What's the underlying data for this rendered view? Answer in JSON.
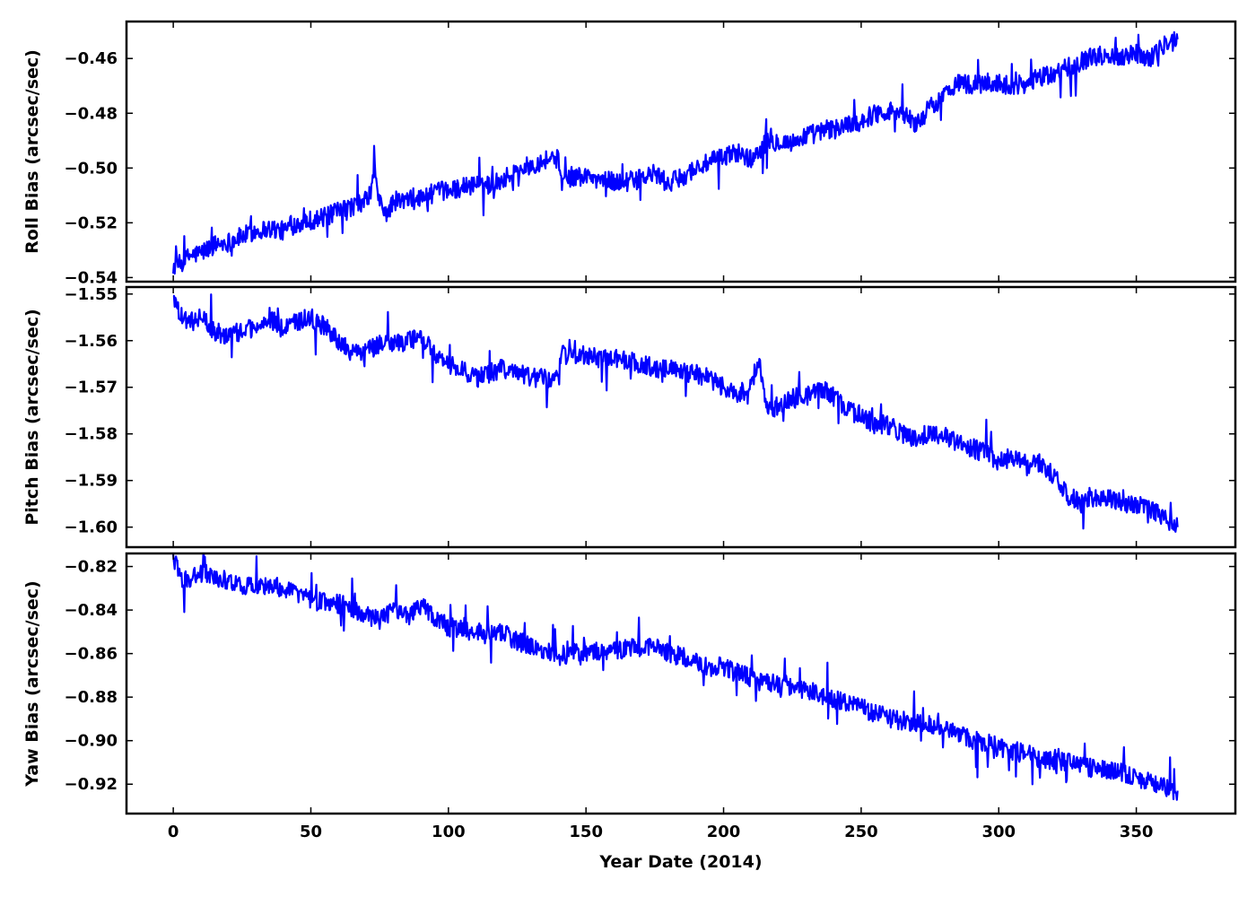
{
  "chart_data": [
    {
      "type": "line",
      "ylabel": "Roll Bias (arcsec/sec)",
      "xlim": [
        -17,
        386
      ],
      "ylim": [
        -0.5415,
        -0.4465
      ],
      "xticks": [
        0,
        50,
        100,
        150,
        200,
        250,
        300,
        350
      ],
      "yticks": [
        -0.54,
        -0.52,
        -0.5,
        -0.48,
        -0.46
      ],
      "ytick_labels": [
        "−0.54",
        "−0.52",
        "−0.50",
        "−0.48",
        "−0.46"
      ],
      "series": [
        {
          "color": "#0000ff",
          "x": [
            0,
            3,
            6,
            10,
            15,
            20,
            25,
            30,
            35,
            40,
            45,
            50,
            55,
            60,
            65,
            70,
            72,
            73,
            75,
            78,
            80,
            85,
            90,
            95,
            100,
            105,
            110,
            115,
            120,
            125,
            130,
            135,
            138,
            140,
            141,
            145,
            150,
            155,
            160,
            165,
            170,
            175,
            180,
            185,
            190,
            195,
            200,
            205,
            210,
            215,
            220,
            225,
            230,
            235,
            240,
            245,
            250,
            255,
            260,
            265,
            270,
            275,
            280,
            285,
            290,
            295,
            300,
            305,
            310,
            315,
            320,
            325,
            330,
            335,
            340,
            345,
            350,
            355,
            360,
            365
          ],
          "values": [
            -0.536,
            -0.535,
            -0.532,
            -0.531,
            -0.528,
            -0.527,
            -0.525,
            -0.523,
            -0.522,
            -0.523,
            -0.52,
            -0.519,
            -0.518,
            -0.516,
            -0.514,
            -0.512,
            -0.508,
            -0.5,
            -0.513,
            -0.517,
            -0.512,
            -0.512,
            -0.511,
            -0.509,
            -0.508,
            -0.507,
            -0.506,
            -0.506,
            -0.504,
            -0.501,
            -0.499,
            -0.497,
            -0.496,
            -0.497,
            -0.505,
            -0.503,
            -0.503,
            -0.504,
            -0.505,
            -0.505,
            -0.504,
            -0.502,
            -0.506,
            -0.503,
            -0.5,
            -0.498,
            -0.496,
            -0.494,
            -0.497,
            -0.491,
            -0.49,
            -0.491,
            -0.488,
            -0.487,
            -0.486,
            -0.484,
            -0.483,
            -0.48,
            -0.479,
            -0.48,
            -0.484,
            -0.478,
            -0.474,
            -0.468,
            -0.47,
            -0.469,
            -0.469,
            -0.47,
            -0.469,
            -0.467,
            -0.466,
            -0.463,
            -0.461,
            -0.459,
            -0.459,
            -0.459,
            -0.458,
            -0.46,
            -0.455,
            -0.453
          ]
        }
      ]
    },
    {
      "type": "line",
      "ylabel": "Pitch Bias (arcsec/sec)",
      "xlim": [
        -17,
        386
      ],
      "ylim": [
        -1.6043,
        -1.5485
      ],
      "xticks": [
        0,
        50,
        100,
        150,
        200,
        250,
        300,
        350
      ],
      "yticks": [
        -1.6,
        -1.59,
        -1.58,
        -1.57,
        -1.56,
        -1.55
      ],
      "ytick_labels": [
        "−1.60",
        "−1.59",
        "−1.58",
        "−1.57",
        "−1.56",
        "−1.55"
      ],
      "series": [
        {
          "color": "#0000ff",
          "x": [
            0,
            3,
            6,
            10,
            15,
            20,
            25,
            30,
            35,
            40,
            45,
            50,
            55,
            60,
            65,
            70,
            75,
            80,
            85,
            90,
            95,
            100,
            105,
            110,
            115,
            120,
            125,
            130,
            135,
            139,
            141,
            145,
            150,
            155,
            160,
            165,
            170,
            175,
            180,
            185,
            190,
            195,
            200,
            205,
            210,
            213,
            216,
            220,
            225,
            230,
            235,
            240,
            245,
            250,
            255,
            260,
            265,
            270,
            275,
            280,
            285,
            290,
            295,
            300,
            305,
            310,
            315,
            320,
            325,
            330,
            335,
            340,
            345,
            350,
            355,
            360,
            365
          ],
          "values": [
            -1.55,
            -1.555,
            -1.556,
            -1.555,
            -1.558,
            -1.559,
            -1.558,
            -1.557,
            -1.555,
            -1.558,
            -1.556,
            -1.555,
            -1.557,
            -1.56,
            -1.563,
            -1.562,
            -1.561,
            -1.561,
            -1.56,
            -1.559,
            -1.563,
            -1.565,
            -1.566,
            -1.568,
            -1.567,
            -1.566,
            -1.567,
            -1.568,
            -1.568,
            -1.569,
            -1.563,
            -1.563,
            -1.563,
            -1.564,
            -1.564,
            -1.564,
            -1.565,
            -1.566,
            -1.566,
            -1.567,
            -1.567,
            -1.568,
            -1.57,
            -1.572,
            -1.569,
            -1.564,
            -1.575,
            -1.574,
            -1.572,
            -1.572,
            -1.57,
            -1.572,
            -1.575,
            -1.576,
            -1.578,
            -1.578,
            -1.58,
            -1.581,
            -1.58,
            -1.58,
            -1.582,
            -1.583,
            -1.584,
            -1.586,
            -1.585,
            -1.587,
            -1.586,
            -1.589,
            -1.593,
            -1.595,
            -1.594,
            -1.594,
            -1.595,
            -1.595,
            -1.596,
            -1.598,
            -1.6
          ]
        }
      ]
    },
    {
      "type": "line",
      "xlabel": "Year Date (2014)",
      "ylabel": "Yaw Bias (arcsec/sec)",
      "xlim": [
        -17,
        386
      ],
      "ylim": [
        -0.9335,
        -0.814
      ],
      "xticks": [
        0,
        50,
        100,
        150,
        200,
        250,
        300,
        350
      ],
      "xtick_labels": [
        "0",
        "50",
        "100",
        "150",
        "200",
        "250",
        "300",
        "350"
      ],
      "yticks": [
        -0.92,
        -0.9,
        -0.88,
        -0.86,
        -0.84,
        -0.82
      ],
      "ytick_labels": [
        "−0.92",
        "−0.90",
        "−0.88",
        "−0.86",
        "−0.84",
        "−0.82"
      ],
      "series": [
        {
          "color": "#0000ff",
          "x": [
            0,
            3,
            6,
            10,
            15,
            20,
            25,
            30,
            35,
            40,
            45,
            50,
            55,
            60,
            65,
            70,
            75,
            80,
            85,
            90,
            95,
            100,
            105,
            110,
            115,
            120,
            125,
            130,
            135,
            140,
            145,
            150,
            155,
            160,
            165,
            170,
            175,
            178,
            180,
            185,
            190,
            195,
            200,
            205,
            210,
            215,
            220,
            225,
            230,
            235,
            240,
            245,
            250,
            255,
            260,
            265,
            270,
            275,
            280,
            285,
            290,
            295,
            300,
            305,
            310,
            315,
            320,
            325,
            330,
            335,
            340,
            345,
            350,
            355,
            360,
            365
          ],
          "values": [
            -0.817,
            -0.825,
            -0.826,
            -0.823,
            -0.825,
            -0.827,
            -0.829,
            -0.828,
            -0.829,
            -0.83,
            -0.832,
            -0.835,
            -0.836,
            -0.837,
            -0.84,
            -0.842,
            -0.845,
            -0.84,
            -0.843,
            -0.838,
            -0.843,
            -0.848,
            -0.849,
            -0.85,
            -0.85,
            -0.851,
            -0.854,
            -0.857,
            -0.859,
            -0.861,
            -0.86,
            -0.86,
            -0.859,
            -0.859,
            -0.858,
            -0.857,
            -0.857,
            -0.859,
            -0.86,
            -0.861,
            -0.864,
            -0.866,
            -0.866,
            -0.869,
            -0.871,
            -0.874,
            -0.874,
            -0.875,
            -0.877,
            -0.879,
            -0.881,
            -0.883,
            -0.885,
            -0.887,
            -0.889,
            -0.891,
            -0.892,
            -0.893,
            -0.895,
            -0.897,
            -0.9,
            -0.901,
            -0.903,
            -0.905,
            -0.906,
            -0.908,
            -0.909,
            -0.91,
            -0.912,
            -0.913,
            -0.914,
            -0.915,
            -0.917,
            -0.918,
            -0.921,
            -0.923
          ]
        }
      ]
    }
  ]
}
